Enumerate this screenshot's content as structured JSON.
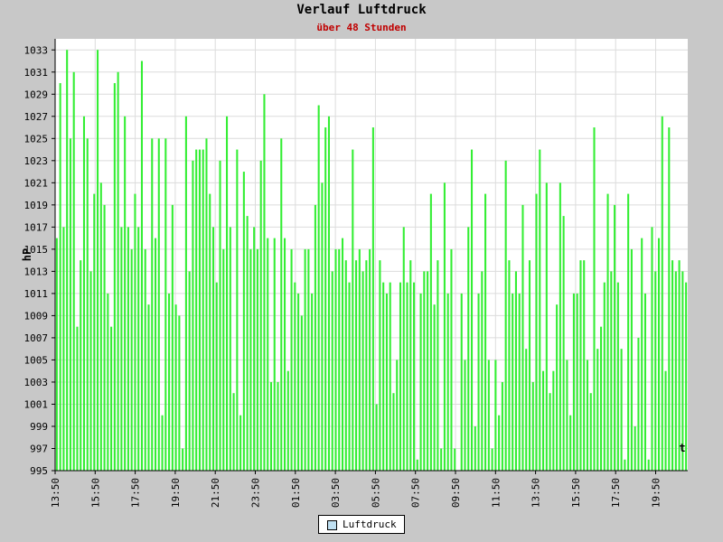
{
  "chart_data": {
    "type": "bar",
    "title": "Verlauf Luftdruck",
    "subtitle": "über 48 Stunden",
    "ylabel": "hP",
    "xlabel": "t",
    "ylim": [
      995,
      1034
    ],
    "yticks": [
      995,
      997,
      999,
      1001,
      1003,
      1005,
      1007,
      1009,
      1011,
      1013,
      1015,
      1017,
      1019,
      1021,
      1023,
      1025,
      1027,
      1029,
      1031,
      1033
    ],
    "xticks": [
      "13:50",
      "15:50",
      "17:50",
      "19:50",
      "21:50",
      "23:50",
      "01:50",
      "03:50",
      "05:50",
      "07:50",
      "09:50",
      "11:50",
      "13:50",
      "15:50",
      "17:50",
      "19:50"
    ],
    "grid": true,
    "bar_color": "#33ee33",
    "series": [
      {
        "name": "Luftdruck",
        "values": [
          1016,
          1030,
          1017,
          1033,
          1025,
          1031,
          1008,
          1014,
          1027,
          1025,
          1013,
          1020,
          1033,
          1021,
          1019,
          1011,
          1008,
          1030,
          1031,
          1017,
          1027,
          1017,
          1015,
          1020,
          1017,
          1032,
          1015,
          1010,
          1025,
          1016,
          1025,
          1000,
          1025,
          1011,
          1019,
          1010,
          1009,
          997,
          1027,
          1013,
          1023,
          1024,
          1024,
          1024,
          1025,
          1020,
          1017,
          1012,
          1023,
          1015,
          1027,
          1017,
          1002,
          1024,
          1000,
          1022,
          1018,
          1015,
          1017,
          1015,
          1023,
          1029,
          1016,
          1003,
          1016,
          1003,
          1025,
          1016,
          1004,
          1015,
          1012,
          1011,
          1009,
          1015,
          1015,
          1011,
          1019,
          1028,
          1021,
          1026,
          1027,
          1013,
          1015,
          1015,
          1016,
          1014,
          1012,
          1024,
          1014,
          1015,
          1013,
          1014,
          1015,
          1026,
          1001,
          1014,
          1012,
          1011,
          1012,
          1002,
          1005,
          1012,
          1017,
          1012,
          1014,
          1012,
          996,
          1011,
          1013,
          1013,
          1020,
          1010,
          1014,
          997,
          1021,
          1011,
          1015,
          997,
          995,
          1011,
          1005,
          1017,
          1024,
          999,
          1011,
          1013,
          1020,
          1005,
          997,
          1005,
          1000,
          1003,
          1023,
          1014,
          1011,
          1013,
          1011,
          1019,
          1006,
          1014,
          1003,
          1020,
          1024,
          1004,
          1021,
          1002,
          1004,
          1010,
          1021,
          1018,
          1005,
          1000,
          1011,
          1011,
          1014,
          1014,
          1005,
          1002,
          1026,
          1006,
          1008,
          1012,
          1020,
          1013,
          1019,
          1012,
          1006,
          996,
          1020,
          1015,
          999,
          1007,
          1016,
          1011,
          996,
          1017,
          1013,
          1016,
          1027,
          1004,
          1026,
          1014,
          1013,
          1014,
          1013,
          1012
        ]
      }
    ],
    "legend": "bottom-center"
  }
}
